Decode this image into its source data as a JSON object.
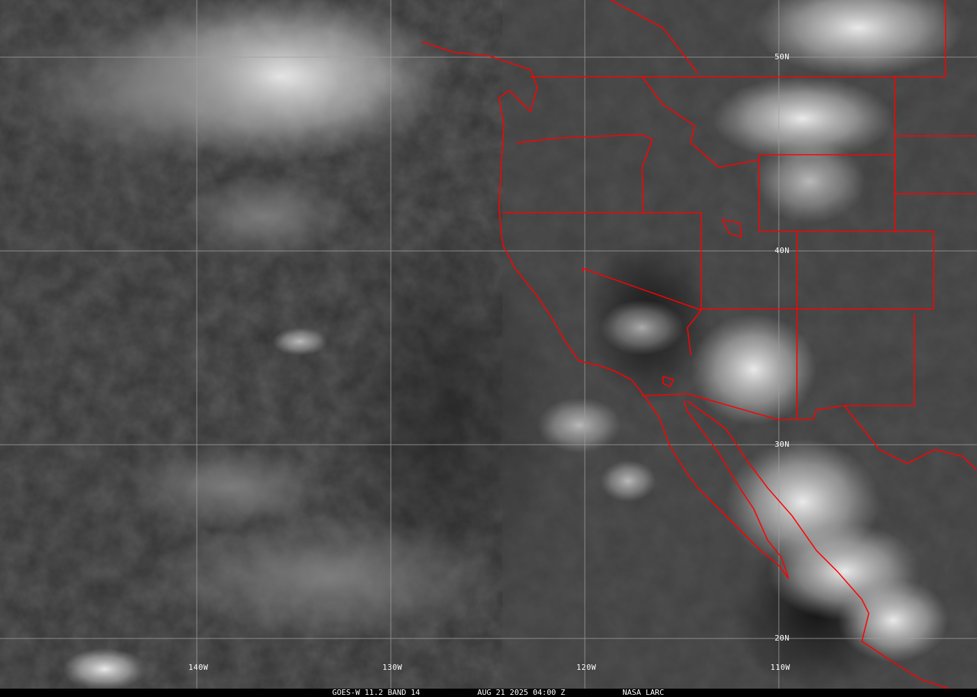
{
  "map": {
    "grid_labels": {
      "lon": [
        "140W",
        "130W",
        "120W",
        "110W"
      ],
      "lat": [
        "50N",
        "40N",
        "30N",
        "20N"
      ]
    },
    "border_color": "#ff0000",
    "grid_color": "#a0a0a0"
  },
  "footer": {
    "product": "GOES-W 11.2 BAND 14",
    "datetime": "AUG 21 2025 04:00 Z",
    "source": "NASA LARC"
  }
}
